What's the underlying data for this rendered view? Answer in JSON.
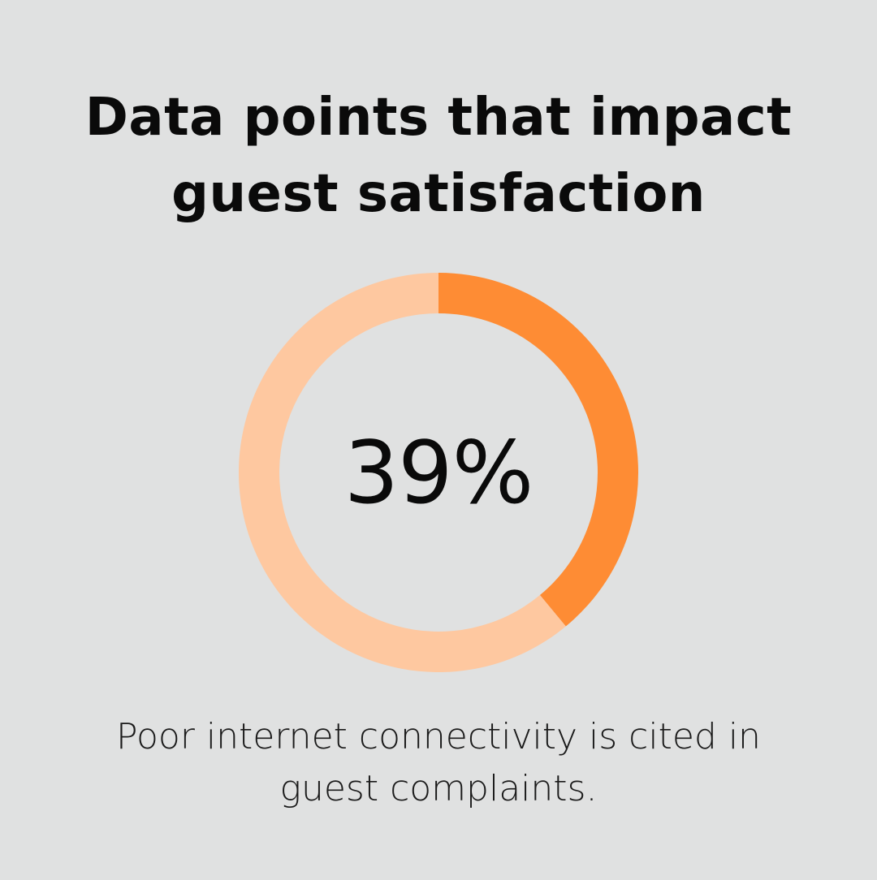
{
  "title": {
    "line1": "Data points that impact",
    "line2": "guest satisfaction"
  },
  "chart_data": {
    "type": "pie",
    "variant": "donut",
    "values": [
      39,
      61
    ],
    "center_label": "39%",
    "colors": {
      "highlight": "#fe8c34",
      "remainder": "#fec8a0"
    },
    "start_angle": "top",
    "direction": "clockwise"
  },
  "caption": "Poor internet connectivity is cited in guest complaints.",
  "colors": {
    "background": "#e0e1e1",
    "text": "#0a0a0a"
  }
}
